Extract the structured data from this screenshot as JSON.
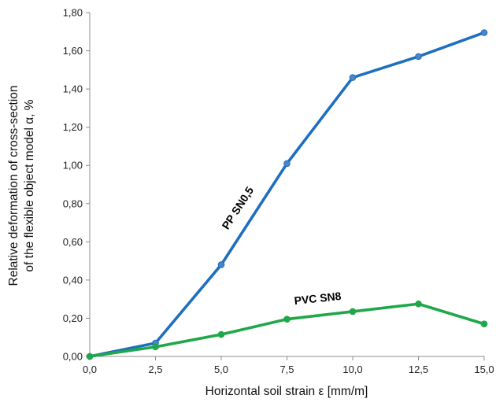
{
  "chart_data": {
    "type": "line",
    "xlabel": "Horizontal soil strain ε [mm/m]",
    "ylabel_lines": [
      "Relative deformation of cross-section",
      "of the flexible object model α, %"
    ],
    "x": [
      0.0,
      2.5,
      5.0,
      7.5,
      10.0,
      12.5,
      15.0
    ],
    "x_tick_labels": [
      "0,0",
      "2,5",
      "5,0",
      "7,5",
      "10,0",
      "12,5",
      "15,0"
    ],
    "y_tick_labels": [
      "0,00",
      "0,20",
      "0,40",
      "0,60",
      "0,80",
      "1,00",
      "1,20",
      "1,40",
      "1,60",
      "1,80"
    ],
    "xlim": [
      0,
      15
    ],
    "ylim": [
      0,
      1.8
    ],
    "grid": false,
    "legend": "none",
    "series": [
      {
        "name": "PP SN0,5",
        "color": "#1F6FBF",
        "marker_color": "#4A86C8",
        "values": [
          0.0,
          0.07,
          0.48,
          1.01,
          1.46,
          1.57,
          1.695
        ]
      },
      {
        "name": "PVC SN8",
        "color": "#1FA84A",
        "marker_color": "#1FA84A",
        "values": [
          0.0,
          0.05,
          0.115,
          0.195,
          0.235,
          0.275,
          0.17
        ]
      }
    ]
  }
}
